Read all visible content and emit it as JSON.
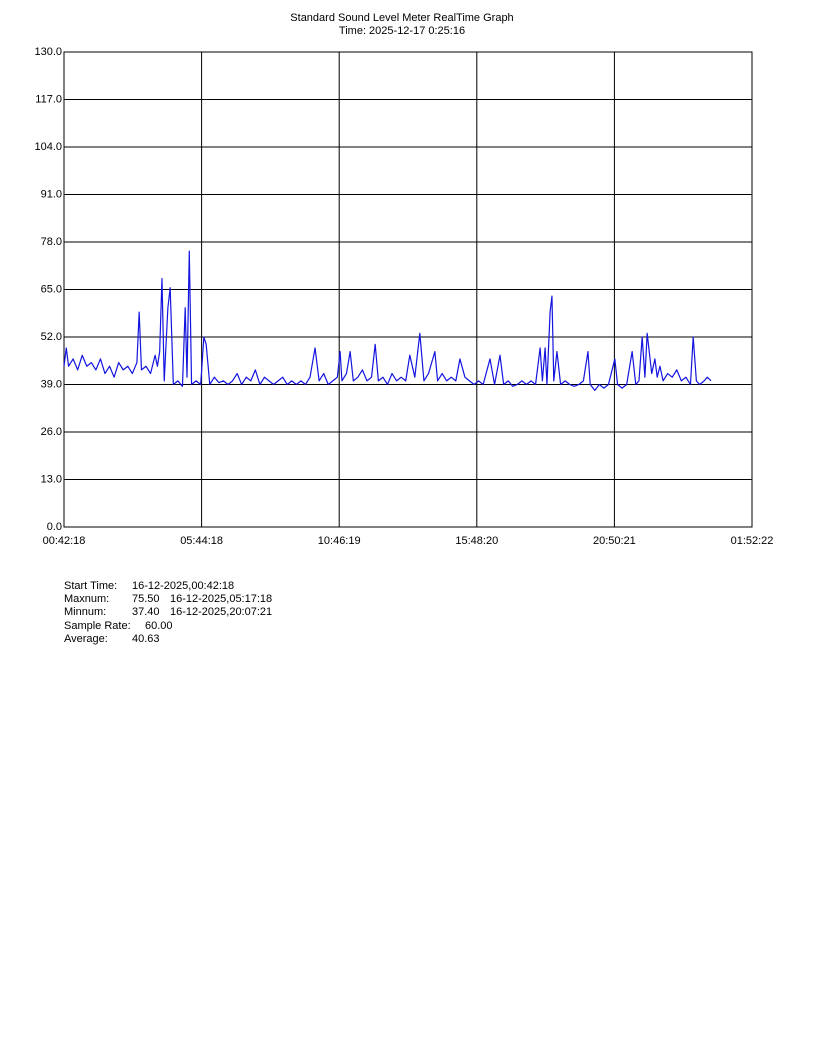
{
  "chart_data": {
    "type": "line",
    "title": "Standard Sound Level Meter RealTime Graph",
    "subtitle": "Time: 2025-12-17  0:25:16",
    "xlim": [
      0,
      1510.08
    ],
    "xticks": [
      {
        "value": 0,
        "label": "00:42:18"
      },
      {
        "value": 302.02,
        "label": "05:44:18"
      },
      {
        "value": 604.03,
        "label": "10:46:19"
      },
      {
        "value": 906.05,
        "label": "15:48:20"
      },
      {
        "value": 1208.07,
        "label": "20:50:21"
      },
      {
        "value": 1510.08,
        "label": "01:52:22"
      }
    ],
    "ylim": [
      0,
      130
    ],
    "yticks": [
      {
        "value": 0,
        "label": "0.0"
      },
      {
        "value": 13,
        "label": "13.0"
      },
      {
        "value": 26,
        "label": "26.0"
      },
      {
        "value": 39,
        "label": "39.0"
      },
      {
        "value": 52,
        "label": "52.0"
      },
      {
        "value": 65,
        "label": "65.0"
      },
      {
        "value": 78,
        "label": "78.0"
      },
      {
        "value": 91,
        "label": "91.0"
      },
      {
        "value": 104,
        "label": "104.0"
      },
      {
        "value": 117,
        "label": "117.0"
      },
      {
        "value": 130,
        "label": "130.0"
      }
    ],
    "grid": true,
    "x": [
      0,
      5,
      10,
      20,
      30,
      40,
      50,
      60,
      70,
      80,
      90,
      100,
      110,
      120,
      130,
      140,
      150,
      160,
      165,
      170,
      180,
      190,
      200,
      205,
      210,
      215,
      220,
      228,
      233,
      240,
      250,
      260,
      266,
      270,
      275,
      280,
      290,
      300,
      307,
      312,
      320,
      330,
      340,
      350,
      360,
      370,
      380,
      390,
      400,
      410,
      420,
      430,
      440,
      450,
      460,
      470,
      480,
      490,
      500,
      510,
      520,
      530,
      540,
      551,
      560,
      570,
      580,
      590,
      600,
      606,
      610,
      620,
      628,
      635,
      645,
      655,
      665,
      675,
      683,
      690,
      700,
      710,
      720,
      730,
      740,
      750,
      759,
      770,
      781,
      790,
      800,
      814,
      820,
      830,
      840,
      850,
      860,
      869,
      880,
      890,
      900,
      910,
      920,
      935,
      945,
      957,
      965,
      975,
      985,
      995,
      1005,
      1015,
      1025,
      1035,
      1045,
      1050,
      1056,
      1060,
      1067,
      1071,
      1075,
      1082,
      1090,
      1100,
      1110,
      1120,
      1130,
      1140,
      1150,
      1155,
      1165,
      1175,
      1185,
      1195,
      1209,
      1215,
      1225,
      1235,
      1247,
      1255,
      1262,
      1269,
      1275,
      1280,
      1290,
      1297,
      1302,
      1308,
      1315,
      1325,
      1335,
      1345,
      1355,
      1365,
      1375,
      1381,
      1388,
      1395,
      1405,
      1412,
      1420
    ],
    "series": [
      {
        "color": "#1414e0",
        "values": [
          44,
          49,
          44,
          46,
          43,
          47,
          44,
          45,
          43,
          46,
          42,
          44,
          41,
          45,
          43,
          44,
          42,
          45,
          58.8,
          43,
          44,
          42,
          47,
          44,
          48,
          68,
          40,
          60,
          65.5,
          39,
          40,
          38.5,
          60,
          41,
          75.5,
          39,
          40,
          39,
          52,
          50,
          39,
          41,
          39.5,
          40,
          39,
          40,
          42,
          39,
          41,
          40,
          43,
          39,
          41,
          40,
          39,
          40,
          41,
          39,
          40,
          39,
          40,
          39,
          41,
          49,
          40,
          42,
          39,
          40,
          41,
          48,
          40,
          42,
          48,
          40,
          41,
          43,
          40,
          41,
          50,
          40,
          41,
          39,
          42,
          40,
          41,
          40,
          47,
          41,
          53,
          40,
          42,
          48,
          40,
          42,
          40,
          41,
          40,
          46,
          41,
          40,
          39,
          40,
          39,
          46,
          39,
          47,
          39,
          40,
          38.5,
          39,
          40,
          39,
          40,
          39,
          49,
          40,
          49,
          39,
          59,
          63.2,
          40,
          48,
          39,
          40,
          39,
          38.5,
          39,
          40,
          48,
          39,
          37.4,
          39,
          38,
          39,
          46,
          39,
          38,
          39,
          48,
          39,
          40,
          52,
          41,
          53,
          42,
          46,
          41,
          44,
          40,
          42,
          41,
          43,
          40,
          41,
          39,
          52,
          40,
          39,
          40,
          41,
          40
        ]
      }
    ]
  },
  "stats": [
    {
      "label": "Start Time:",
      "value": "16-12-2025,00:42:18"
    },
    {
      "label": "Maxnum:",
      "value": "75.50",
      "time": "16-12-2025,05:17:18"
    },
    {
      "label": "Minnum:",
      "value": "37.40",
      "time": "16-12-2025,20:07:21"
    },
    {
      "label": "Sample Rate:",
      "value": "60.00"
    },
    {
      "label": "Average:",
      "value": "40.63"
    }
  ]
}
